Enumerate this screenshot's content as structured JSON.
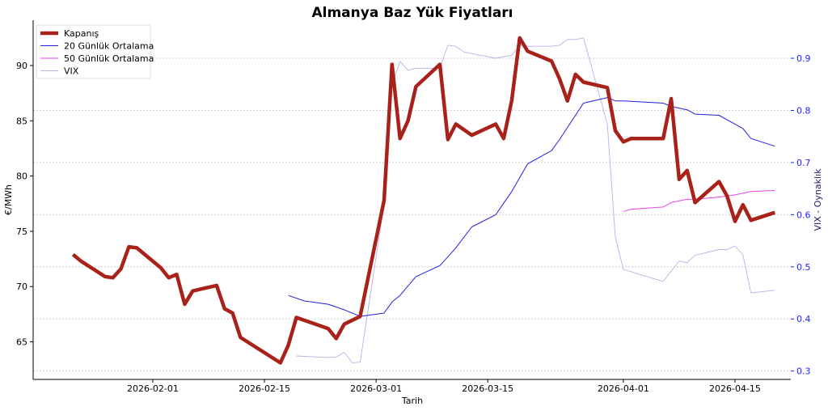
{
  "chart_data": {
    "type": "line",
    "title": "Almanya Baz Yük Fiyatları",
    "xlabel": "Tarih",
    "ylabel": "€/MWh",
    "y2label": "VIX - Oynaklık",
    "xlim": [
      "2026-01-17",
      "2026-04-22"
    ],
    "ylim": [
      61.6,
      94.1
    ],
    "y2lim": [
      0.284,
      0.973
    ],
    "xticks": [
      "2026-02-01",
      "2026-02-15",
      "2026-03-01",
      "2026-03-15",
      "2026-04-01",
      "2026-04-15"
    ],
    "yticks": [
      65,
      70,
      75,
      80,
      85,
      90
    ],
    "y2ticks": [
      0.3,
      0.4,
      0.5,
      0.6,
      0.7,
      0.8,
      0.9
    ],
    "grid": "horizontal dotted (right axis ticks)",
    "legend_position": "top-left",
    "colors": {
      "close": "#a8221a",
      "ma20": "#1f1fe0",
      "ma50": "#ee44ee",
      "vix": "#b4b4e6",
      "y2_axis": "#2020ff",
      "y2_label": "#202070"
    },
    "series": [
      {
        "name": "Kapanış",
        "axis": "left",
        "x": [
          "2026-01-22",
          "2026-01-23",
          "2026-01-26",
          "2026-01-27",
          "2026-01-28",
          "2026-01-29",
          "2026-01-30",
          "2026-02-02",
          "2026-02-03",
          "2026-02-04",
          "2026-02-05",
          "2026-02-06",
          "2026-02-09",
          "2026-02-10",
          "2026-02-11",
          "2026-02-12",
          "2026-02-17",
          "2026-02-18",
          "2026-02-19",
          "2026-02-23",
          "2026-02-24",
          "2026-02-25",
          "2026-02-27",
          "2026-03-02",
          "2026-03-03",
          "2026-03-04",
          "2026-03-05",
          "2026-03-06",
          "2026-03-09",
          "2026-03-10",
          "2026-03-11",
          "2026-03-13",
          "2026-03-16",
          "2026-03-17",
          "2026-03-18",
          "2026-03-19",
          "2026-03-20",
          "2026-03-23",
          "2026-03-24",
          "2026-03-25",
          "2026-03-26",
          "2026-03-27",
          "2026-03-30",
          "2026-03-31",
          "2026-04-01",
          "2026-04-02",
          "2026-04-06",
          "2026-04-07",
          "2026-04-08",
          "2026-04-09",
          "2026-04-10",
          "2026-04-13",
          "2026-04-14",
          "2026-04-15",
          "2026-04-16",
          "2026-04-17",
          "2026-04-20"
        ],
        "values": [
          72.9,
          72.3,
          70.9,
          70.8,
          71.6,
          73.6,
          73.5,
          71.7,
          70.8,
          71.1,
          68.4,
          69.6,
          70.1,
          68.0,
          67.6,
          65.4,
          63.1,
          64.7,
          67.2,
          66.2,
          65.3,
          66.6,
          67.3,
          77.8,
          90.1,
          83.4,
          85.0,
          88.1,
          90.1,
          83.3,
          84.7,
          83.7,
          84.7,
          83.4,
          86.8,
          92.5,
          91.3,
          90.4,
          88.8,
          86.8,
          89.2,
          88.5,
          88.0,
          84.1,
          83.1,
          83.4,
          83.4,
          87.0,
          79.7,
          80.5,
          77.6,
          79.5,
          78.2,
          75.9,
          77.4,
          76.0,
          76.7
        ]
      },
      {
        "name": "20 Günlük Ortalama",
        "axis": "left",
        "x": [
          "2026-02-18",
          "2026-02-20",
          "2026-02-23",
          "2026-02-25",
          "2026-02-27",
          "2026-03-02",
          "2026-03-03",
          "2026-03-04",
          "2026-03-06",
          "2026-03-09",
          "2026-03-10",
          "2026-03-11",
          "2026-03-13",
          "2026-03-16",
          "2026-03-18",
          "2026-03-20",
          "2026-03-23",
          "2026-03-24",
          "2026-03-27",
          "2026-03-30",
          "2026-03-31",
          "2026-04-01",
          "2026-04-06",
          "2026-04-07",
          "2026-04-09",
          "2026-04-10",
          "2026-04-13",
          "2026-04-15",
          "2026-04-16",
          "2026-04-17",
          "2026-04-20"
        ],
        "values": [
          69.2,
          68.7,
          68.4,
          67.9,
          67.3,
          67.6,
          68.6,
          69.2,
          70.9,
          71.9,
          72.7,
          73.5,
          75.4,
          76.5,
          78.6,
          81.1,
          82.3,
          83.3,
          86.6,
          87.1,
          86.8,
          86.8,
          86.6,
          86.3,
          86.0,
          85.6,
          85.5,
          84.7,
          84.3,
          83.4,
          82.7
        ]
      },
      {
        "name": "50 Günlük Ortalama",
        "axis": "left",
        "x": [
          "2026-04-01",
          "2026-04-02",
          "2026-04-06",
          "2026-04-07",
          "2026-04-09",
          "2026-04-10",
          "2026-04-13",
          "2026-04-15",
          "2026-04-17",
          "2026-04-20"
        ],
        "values": [
          76.8,
          77.0,
          77.2,
          77.6,
          77.9,
          77.9,
          78.1,
          78.3,
          78.6,
          78.7
        ]
      },
      {
        "name": "VIX",
        "axis": "right",
        "x": [
          "2026-02-19",
          "2026-02-23",
          "2026-02-24",
          "2026-02-25",
          "2026-02-26",
          "2026-02-27",
          "2026-03-02",
          "2026-03-03",
          "2026-03-04",
          "2026-03-05",
          "2026-03-06",
          "2026-03-09",
          "2026-03-10",
          "2026-03-11",
          "2026-03-12",
          "2026-03-13",
          "2026-03-16",
          "2026-03-18",
          "2026-03-19",
          "2026-03-20",
          "2026-03-23",
          "2026-03-24",
          "2026-03-25",
          "2026-03-26",
          "2026-03-27",
          "2026-03-30",
          "2026-03-31",
          "2026-04-01",
          "2026-04-06",
          "2026-04-08",
          "2026-04-09",
          "2026-04-10",
          "2026-04-13",
          "2026-04-14",
          "2026-04-15",
          "2026-04-16",
          "2026-04-17",
          "2026-04-20"
        ],
        "values": [
          0.329,
          0.326,
          0.327,
          0.336,
          0.316,
          0.317,
          0.62,
          0.85,
          0.894,
          0.877,
          0.881,
          0.881,
          0.925,
          0.923,
          0.912,
          0.909,
          0.9,
          0.906,
          0.925,
          0.923,
          0.923,
          0.925,
          0.936,
          0.936,
          0.939,
          0.774,
          0.557,
          0.495,
          0.472,
          0.511,
          0.508,
          0.522,
          0.533,
          0.533,
          0.54,
          0.523,
          0.45,
          0.455
        ]
      }
    ]
  }
}
